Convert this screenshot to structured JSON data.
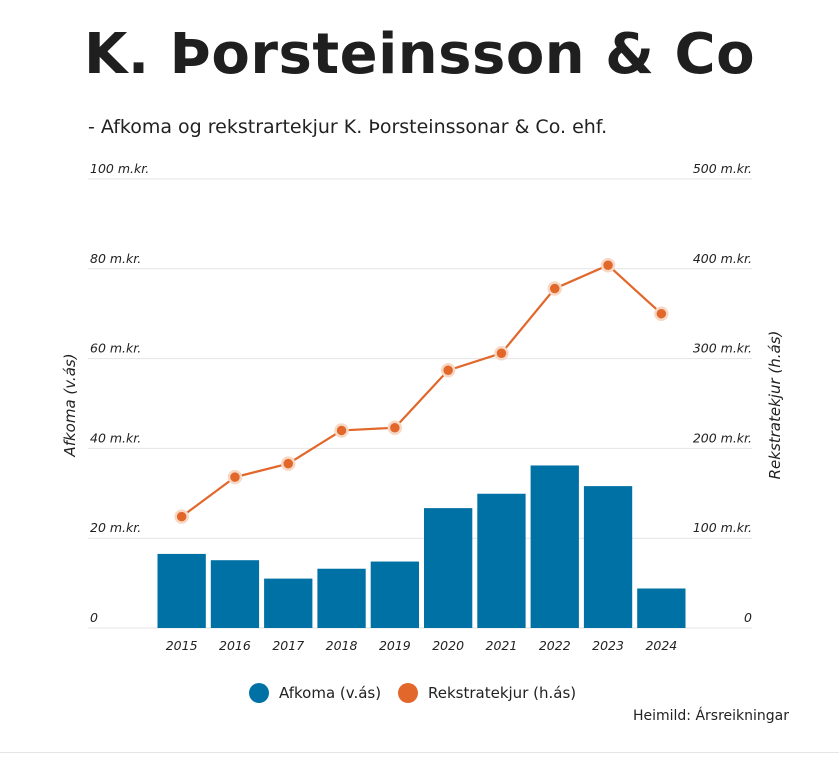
{
  "title": "K. Þorsteinsson & Co",
  "subtitle": "- Afkoma og rekstrartekjur K. Þorsteinssonar & Co. ehf.",
  "source": "Heimild: Ársreikningar",
  "colors": {
    "bar": "#0071a4",
    "line": "#e2672b",
    "point_outline": "#f7d8c4",
    "grid": "#e4e4e4"
  },
  "chart_data": {
    "type": "bar+line",
    "categories": [
      "2015",
      "2016",
      "2017",
      "2018",
      "2019",
      "2020",
      "2021",
      "2022",
      "2023",
      "2024"
    ],
    "series": [
      {
        "name": "Afkoma (v.ás)",
        "type": "bar",
        "axis": "left",
        "values": [
          16.5,
          15.1,
          11.0,
          13.2,
          14.8,
          26.7,
          29.9,
          36.2,
          31.6,
          8.8
        ]
      },
      {
        "name": "Rekstratekjur (h.ás)",
        "type": "line",
        "axis": "right",
        "values": [
          124,
          168,
          183,
          220,
          223,
          287,
          306,
          378,
          404,
          350
        ]
      }
    ],
    "y_left": {
      "label": "Afkoma (v.ás)",
      "range": [
        0,
        100
      ],
      "ticks": [
        0,
        20,
        40,
        60,
        80,
        100
      ],
      "tick_labels": [
        "0",
        "20 m.kr.",
        "40 m.kr.",
        "60 m.kr.",
        "80 m.kr.",
        "100 m.kr."
      ]
    },
    "y_right": {
      "label": "Rekstratekjur (h.ás)",
      "range": [
        0,
        500
      ],
      "ticks": [
        0,
        100,
        200,
        300,
        400,
        500
      ],
      "tick_labels": [
        "0",
        "100 m.kr.",
        "200 m.kr.",
        "300 m.kr.",
        "400 m.kr.",
        "500 m.kr."
      ]
    },
    "legend": {
      "placement": "bottom",
      "items": [
        {
          "label": "Afkoma (v.ás)",
          "color": "#0071a4"
        },
        {
          "label": "Rekstratekjur (h.ás)",
          "color": "#e2672b"
        }
      ]
    },
    "grid": true
  }
}
